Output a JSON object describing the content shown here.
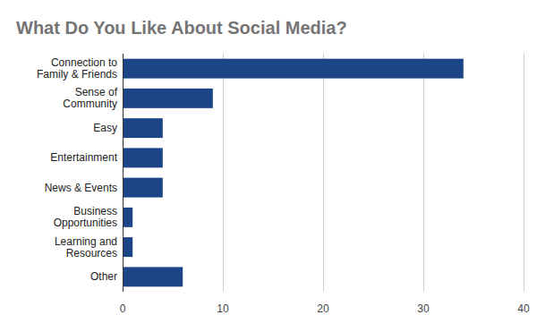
{
  "chart_data": {
    "type": "bar",
    "orientation": "horizontal",
    "title": "What Do You Like About Social Media?",
    "categories": [
      "Connection to Family & Friends",
      "Sense of Community",
      "Easy",
      "Entertainment",
      "News & Events",
      "Business Opportunities",
      "Learning and Resources",
      "Other"
    ],
    "values": [
      34,
      9,
      4,
      4,
      4,
      1,
      1,
      6
    ],
    "color": "#1c4587",
    "xlim": [
      0,
      40
    ],
    "xticks": [
      0,
      10,
      20,
      30,
      40
    ],
    "grid": true
  }
}
